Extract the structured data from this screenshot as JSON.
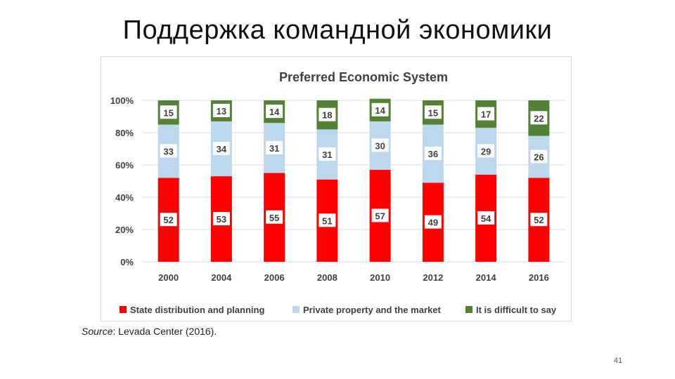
{
  "slide": {
    "title": "Поддержка командной экономики",
    "source_label": "Source",
    "source_text": ": Levada Center (2016).",
    "page_number": "41"
  },
  "colors": {
    "state": "#ff0000",
    "private": "#bdd7ee",
    "difficult": "#548235",
    "grid": "#d9d9d9",
    "axis_text": "#404040",
    "title_text": "#404040"
  },
  "chart_data": {
    "type": "bar",
    "stacked": true,
    "title": "Preferred Economic System",
    "categories": [
      "2000",
      "2004",
      "2006",
      "2008",
      "2010",
      "2012",
      "2014",
      "2016"
    ],
    "series": [
      {
        "name": "State distribution and planning",
        "color_key": "state",
        "values": [
          52,
          53,
          55,
          51,
          57,
          49,
          54,
          52
        ]
      },
      {
        "name": "Private property and the market",
        "color_key": "private",
        "values": [
          33,
          34,
          31,
          31,
          30,
          36,
          29,
          26
        ]
      },
      {
        "name": "It is difficult to say",
        "color_key": "difficult",
        "values": [
          15,
          13,
          14,
          18,
          14,
          15,
          17,
          22
        ]
      }
    ],
    "ylim": [
      0,
      100
    ],
    "yticks": [
      "0%",
      "20%",
      "40%",
      "60%",
      "80%",
      "100%"
    ],
    "grid": true,
    "legend_position": "bottom",
    "data_labels": true
  }
}
